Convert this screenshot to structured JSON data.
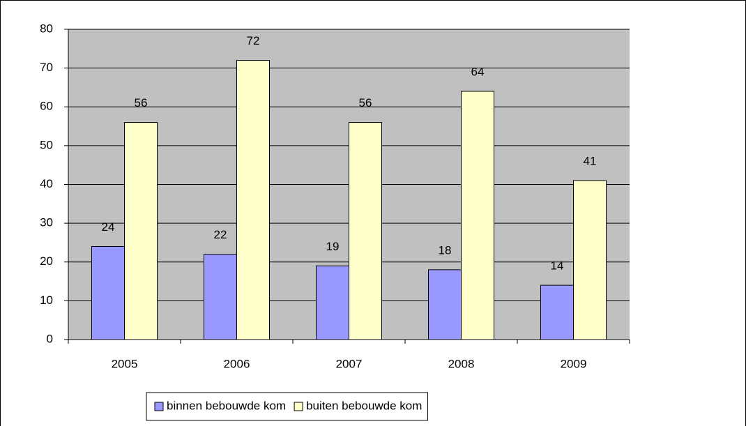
{
  "chart_data": {
    "type": "bar",
    "categories": [
      "2005",
      "2006",
      "2007",
      "2008",
      "2009"
    ],
    "series": [
      {
        "name": "binnen bebouwde kom",
        "color": "#9999ff",
        "values": [
          24,
          22,
          19,
          18,
          14
        ]
      },
      {
        "name": "buiten bebouwde kom",
        "color": "#ffffcc",
        "values": [
          56,
          72,
          56,
          64,
          41
        ]
      }
    ],
    "ylim": [
      0,
      80
    ],
    "yticks": [
      0,
      10,
      20,
      30,
      40,
      50,
      60,
      70,
      80
    ],
    "grid": true,
    "legend": "bottom"
  }
}
